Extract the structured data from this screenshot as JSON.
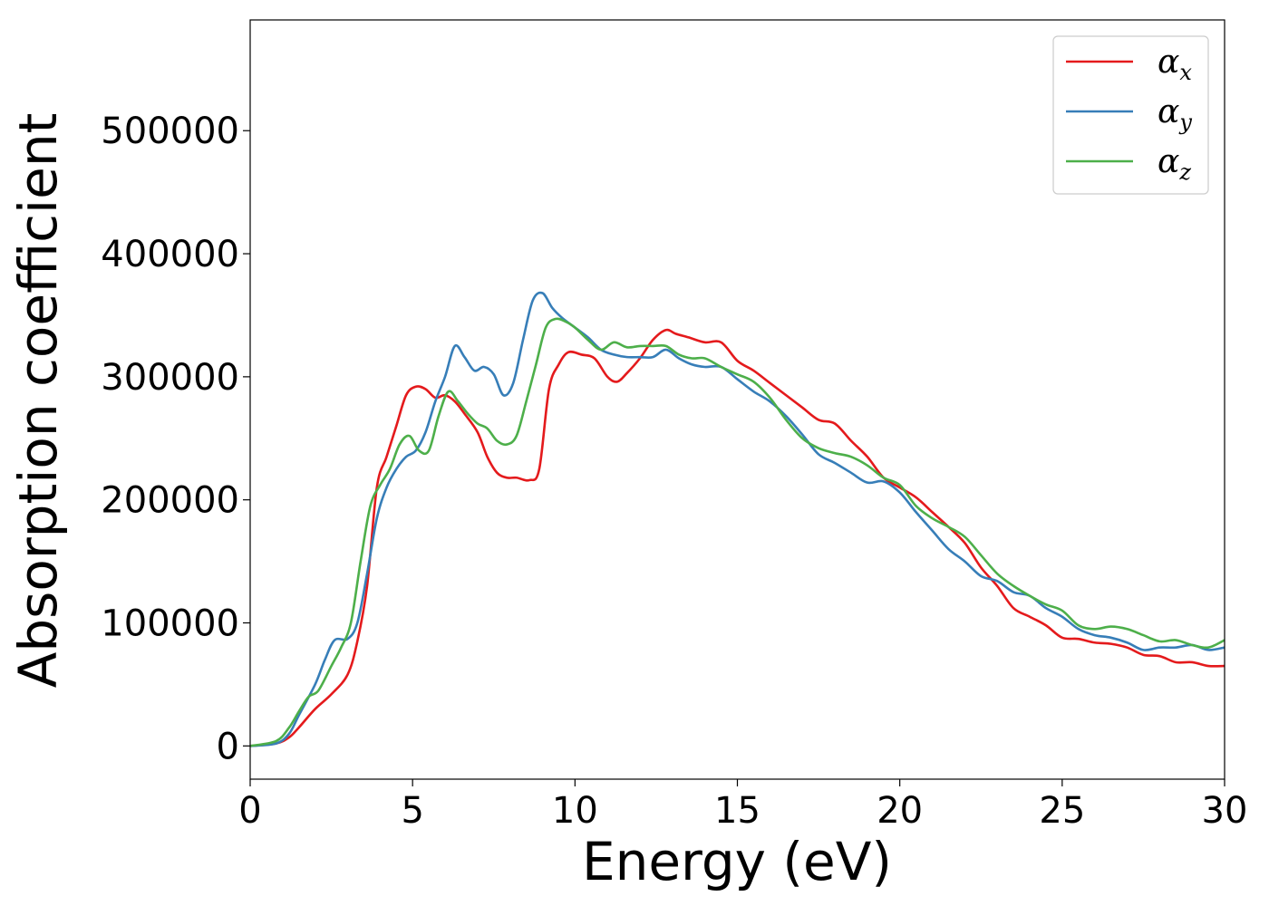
{
  "chart_data": {
    "type": "line",
    "xlabel": "Energy (eV)",
    "ylabel": "Absorption coefficient",
    "xlim": [
      0,
      30
    ],
    "ylim": [
      -27000,
      590000
    ],
    "xticks": [
      "0",
      "5",
      "10",
      "15",
      "20",
      "25",
      "30"
    ],
    "yticks": [
      "0",
      "100000",
      "200000",
      "300000",
      "400000",
      "500000"
    ],
    "grid": false,
    "legend_position": "top-right",
    "series": [
      {
        "name": "αx",
        "symbol": "α",
        "subscript": "x",
        "color": "#e41a1c",
        "x": [
          0,
          0.8,
          1.2,
          1.5,
          2,
          2.5,
          3,
          3.3,
          3.6,
          3.9,
          4.2,
          4.5,
          4.8,
          5.1,
          5.4,
          5.7,
          6,
          6.3,
          6.6,
          7,
          7.3,
          7.6,
          7.9,
          8.2,
          8.6,
          8.9,
          9.2,
          9.5,
          9.8,
          10.2,
          10.6,
          11,
          11.3,
          11.6,
          12,
          12.4,
          12.8,
          13.1,
          13.5,
          14,
          14.5,
          15,
          15.5,
          16,
          16.5,
          17,
          17.5,
          18,
          18.5,
          19,
          19.5,
          20,
          20.5,
          21,
          21.5,
          22,
          22.5,
          23,
          23.5,
          24,
          24.5,
          25,
          25.5,
          26,
          26.5,
          27,
          27.5,
          28,
          28.5,
          29,
          29.5,
          30
        ],
        "y": [
          0,
          2000,
          7000,
          15000,
          30000,
          42000,
          58000,
          85000,
          130000,
          210000,
          235000,
          260000,
          285000,
          292000,
          290000,
          283000,
          285000,
          280000,
          270000,
          255000,
          235000,
          222000,
          218000,
          218000,
          216000,
          225000,
          290000,
          310000,
          320000,
          318000,
          315000,
          300000,
          296000,
          303000,
          315000,
          330000,
          338000,
          335000,
          332000,
          328000,
          328000,
          313000,
          305000,
          295000,
          285000,
          275000,
          265000,
          262000,
          248000,
          235000,
          218000,
          210000,
          202000,
          190000,
          178000,
          165000,
          145000,
          130000,
          112000,
          105000,
          98000,
          88000,
          87000,
          84000,
          83000,
          80000,
          74000,
          73000,
          68000,
          68000,
          65000,
          65000
        ]
      },
      {
        "name": "αy",
        "symbol": "α",
        "subscript": "y",
        "color": "#377eb8",
        "x": [
          0,
          0.8,
          1.2,
          1.5,
          2,
          2.3,
          2.6,
          3,
          3.3,
          3.6,
          3.9,
          4.2,
          4.5,
          4.8,
          5.1,
          5.4,
          5.7,
          6,
          6.3,
          6.6,
          6.9,
          7.2,
          7.5,
          7.8,
          8.1,
          8.4,
          8.7,
          9,
          9.3,
          9.6,
          10,
          10.4,
          10.8,
          11.2,
          11.6,
          12,
          12.4,
          12.8,
          13.2,
          13.6,
          14,
          14.5,
          15,
          15.5,
          16,
          16.5,
          17,
          17.5,
          18,
          18.5,
          19,
          19.5,
          20,
          20.5,
          21,
          21.5,
          22,
          22.5,
          23,
          23.5,
          24,
          24.5,
          25,
          25.5,
          26,
          26.5,
          27,
          27.5,
          28,
          28.5,
          29,
          29.5,
          30
        ],
        "y": [
          0,
          2000,
          10000,
          25000,
          50000,
          70000,
          86000,
          87000,
          100000,
          140000,
          185000,
          210000,
          225000,
          235000,
          240000,
          255000,
          280000,
          300000,
          325000,
          316000,
          305000,
          308000,
          302000,
          285000,
          295000,
          330000,
          362000,
          368000,
          356000,
          348000,
          340000,
          332000,
          322000,
          318000,
          316000,
          316000,
          316000,
          322000,
          315000,
          310000,
          308000,
          308000,
          298000,
          288000,
          280000,
          268000,
          253000,
          237000,
          230000,
          222000,
          214000,
          215000,
          206000,
          190000,
          175000,
          160000,
          150000,
          138000,
          134000,
          125000,
          122000,
          112000,
          105000,
          95000,
          90000,
          88000,
          84000,
          78000,
          80000,
          80000,
          82000,
          78000,
          80000
        ]
      },
      {
        "name": "αz",
        "symbol": "α",
        "subscript": "z",
        "color": "#4daf4a",
        "x": [
          0,
          0.8,
          1.2,
          1.5,
          1.8,
          2.1,
          2.5,
          2.8,
          3.1,
          3.4,
          3.7,
          4,
          4.3,
          4.6,
          4.9,
          5.2,
          5.5,
          5.8,
          6.1,
          6.4,
          6.7,
          7,
          7.3,
          7.6,
          7.9,
          8.2,
          8.5,
          8.8,
          9.1,
          9.4,
          9.7,
          10,
          10.4,
          10.8,
          11.2,
          11.6,
          12,
          12.4,
          12.8,
          13.2,
          13.6,
          14,
          14.5,
          15,
          15.5,
          16,
          16.5,
          17,
          17.5,
          18,
          18.5,
          19,
          19.5,
          20,
          20.5,
          21,
          21.5,
          22,
          22.5,
          23,
          23.5,
          24,
          24.5,
          25,
          25.5,
          26,
          26.5,
          27,
          27.5,
          28,
          28.5,
          29,
          29.5,
          30
        ],
        "y": [
          0,
          4000,
          15000,
          28000,
          40000,
          45000,
          65000,
          80000,
          100000,
          150000,
          195000,
          212000,
          225000,
          245000,
          252000,
          240000,
          240000,
          268000,
          288000,
          280000,
          270000,
          262000,
          258000,
          248000,
          245000,
          252000,
          280000,
          310000,
          340000,
          347000,
          345000,
          340000,
          330000,
          322000,
          328000,
          324000,
          325000,
          325000,
          325000,
          318000,
          315000,
          315000,
          308000,
          302000,
          296000,
          283000,
          265000,
          250000,
          242000,
          238000,
          235000,
          228000,
          218000,
          212000,
          195000,
          185000,
          178000,
          170000,
          155000,
          140000,
          130000,
          122000,
          115000,
          110000,
          98000,
          95000,
          97000,
          95000,
          90000,
          85000,
          86000,
          82000,
          80000,
          86000
        ]
      }
    ]
  }
}
